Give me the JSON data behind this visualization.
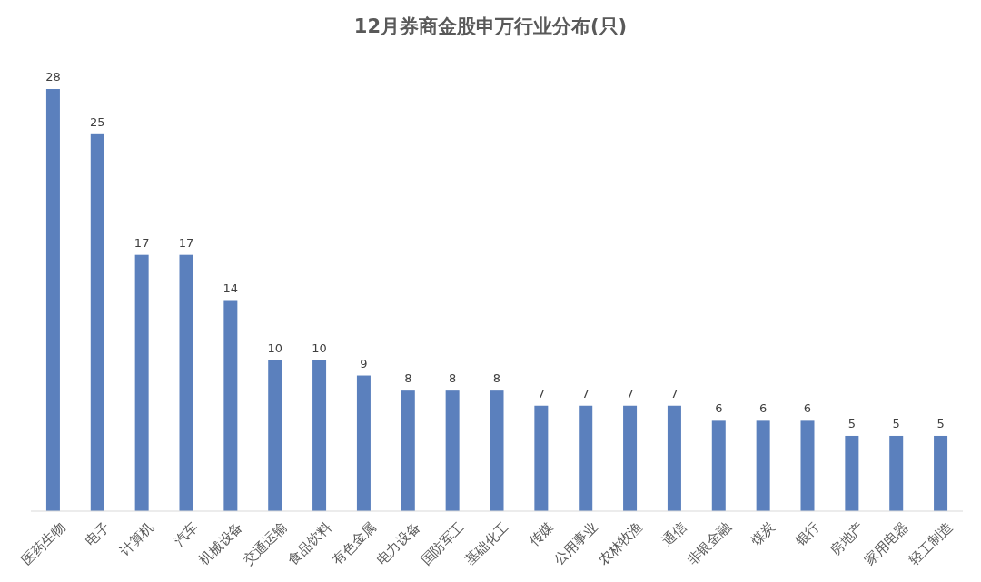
{
  "chart_data": {
    "type": "bar",
    "title": "12月券商金股申万行业分布(只)",
    "categories": [
      "医药生物",
      "电子",
      "计算机",
      "汽车",
      "机械设备",
      "交通运输",
      "食品饮料",
      "有色金属",
      "电力设备",
      "国防军工",
      "基础化工",
      "传媒",
      "公用事业",
      "农林牧渔",
      "通信",
      "非银金融",
      "煤炭",
      "银行",
      "房地产",
      "家用电器",
      "轻工制造"
    ],
    "values": [
      28,
      25,
      17,
      17,
      14,
      10,
      10,
      9,
      8,
      8,
      8,
      7,
      7,
      7,
      7,
      6,
      6,
      6,
      5,
      5,
      5
    ],
    "color": "#5b80bd",
    "data_labels": true
  }
}
